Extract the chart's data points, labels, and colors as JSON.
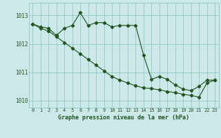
{
  "xlabel": "Graphe pression niveau de la mer (hPa)",
  "background_color": "#cce8e8",
  "grid_color": "#99cccc",
  "line_color": "#225522",
  "ylim": [
    1009.75,
    1013.45
  ],
  "yticks": [
    1010,
    1011,
    1012,
    1013
  ],
  "ytick_labels": [
    "1010",
    "1011",
    "1012",
    "1013"
  ],
  "xlim": [
    -0.5,
    23.5
  ],
  "xticks": [
    0,
    1,
    2,
    3,
    4,
    5,
    6,
    7,
    8,
    9,
    10,
    11,
    12,
    13,
    14,
    15,
    16,
    17,
    18,
    19,
    20,
    21,
    22,
    23
  ],
  "series1": [
    1012.7,
    1012.6,
    1012.55,
    1012.3,
    1012.55,
    1012.65,
    1013.1,
    1012.65,
    1012.75,
    1012.75,
    1012.6,
    1012.65,
    1012.65,
    1012.65,
    1011.6,
    1010.75,
    1010.85,
    1010.75,
    1010.55,
    1010.4,
    1010.35,
    1010.5,
    1010.72,
    1010.72
  ],
  "series2": [
    1012.7,
    1012.55,
    1012.45,
    1012.25,
    1012.05,
    1011.85,
    1011.65,
    1011.45,
    1011.25,
    1011.05,
    1010.85,
    1010.72,
    1010.62,
    1010.52,
    1010.45,
    1010.42,
    1010.38,
    1010.32,
    1010.28,
    1010.22,
    1010.18,
    1010.12,
    1010.62,
    1010.72
  ],
  "xlabel_fontsize": 6.0,
  "tick_fontsize": 5.0
}
